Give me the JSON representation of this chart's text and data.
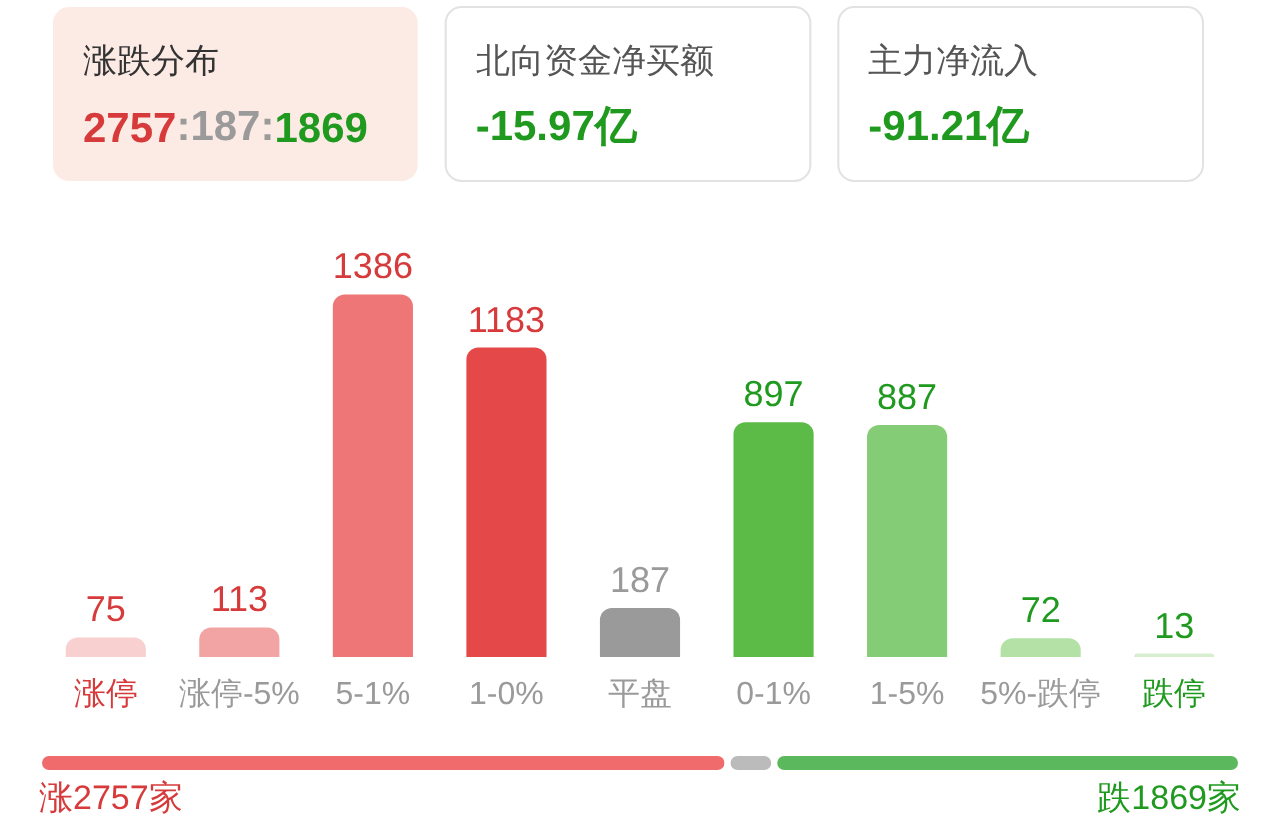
{
  "chart_data": [
    {
      "type": "other",
      "annotations": [
        "涨跌分布",
        "2757:187:1869",
        "北向资金净买额",
        "-15.97亿",
        "主力净流入",
        "-91.21亿"
      ]
    },
    {
      "type": "bar",
      "categories": [
        "涨停",
        "涨停-5%",
        "5-1%",
        "1-0%",
        "平盘",
        "0-1%",
        "1-5%",
        "5%-跌停",
        "跌停"
      ],
      "values": [
        75,
        113,
        1386,
        1183,
        187,
        897,
        887,
        72,
        13
      ],
      "colors": [
        "#f9d0d0",
        "#f2a4a4",
        "#ee7676",
        "#e54848",
        "#9a9a9a",
        "#5bbb46",
        "#85cc76",
        "#b3e1a6",
        "#d7efd0"
      ],
      "data_labels": true,
      "tick_labels": "x"
    },
    {
      "type": "bar",
      "orientation": "horizontal",
      "stacked": true,
      "categories": [
        null
      ],
      "series": [
        {
          "color": "#f06b6b",
          "values": [
            2757
          ],
          "value_labels": [
            "涨2757家"
          ]
        },
        {
          "color": "#bbbbbb",
          "values": [
            187
          ],
          "value_labels": [
            null
          ]
        },
        {
          "color": "#5cb85c",
          "values": [
            1869
          ],
          "value_labels": [
            "跌1869家"
          ]
        }
      ],
      "tick_labels": false
    }
  ]
}
